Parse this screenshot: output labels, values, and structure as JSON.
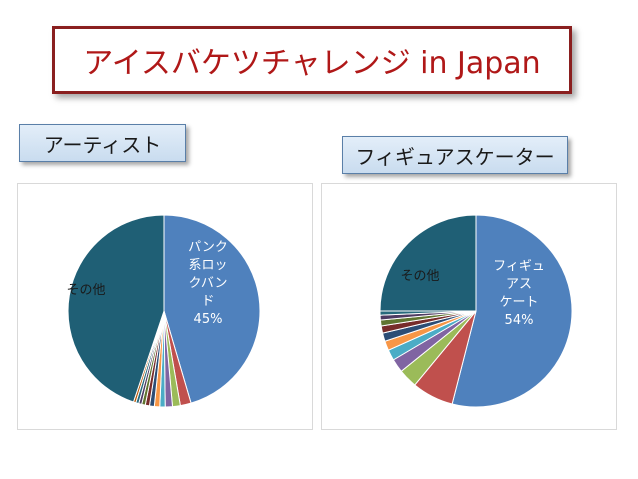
{
  "slide": {
    "title": "アイスバケツチャレンジ in Japan",
    "left_label": "アーティスト",
    "right_label": "フィギュアスケーター"
  },
  "colors": {
    "title_text": "#b01818",
    "title_border": "#8a1f1f"
  },
  "chart_data": [
    {
      "type": "pie",
      "name": "アーティスト",
      "slices": [
        {
          "label": "パンク系ロックバンド",
          "value": 45,
          "color": "#4f81bd",
          "label_lines": [
            "パンク",
            "系ロッ",
            "クバン",
            "ド"
          ],
          "pct_label": "45%"
        },
        {
          "label": "",
          "value": 1.8,
          "color": "#c0504d"
        },
        {
          "label": "",
          "value": 1.3,
          "color": "#9bbb59"
        },
        {
          "label": "",
          "value": 1.2,
          "color": "#8064a2"
        },
        {
          "label": "",
          "value": 0.9,
          "color": "#4bacc6"
        },
        {
          "label": "",
          "value": 0.9,
          "color": "#f79646"
        },
        {
          "label": "",
          "value": 0.8,
          "color": "#2c4d75"
        },
        {
          "label": "",
          "value": 0.7,
          "color": "#772c2a"
        },
        {
          "label": "",
          "value": 0.6,
          "color": "#5f7530"
        },
        {
          "label": "",
          "value": 0.5,
          "color": "#4d3b62"
        },
        {
          "label": "",
          "value": 0.5,
          "color": "#276a7c"
        },
        {
          "label": "",
          "value": 0.4,
          "color": "#b65708"
        },
        {
          "label": "その他",
          "value": 44.4,
          "color": "#1f5f75",
          "label_lines": [
            "その他"
          ]
        }
      ]
    },
    {
      "type": "pie",
      "name": "フィギュアスケーター",
      "slices": [
        {
          "label": "フィギュアスケート",
          "value": 54,
          "color": "#4f81bd",
          "label_lines": [
            "フィギュ",
            "アス",
            "ケート"
          ],
          "pct_label": "54%"
        },
        {
          "label": "",
          "value": 7,
          "color": "#c0504d"
        },
        {
          "label": "",
          "value": 3.2,
          "color": "#9bbb59"
        },
        {
          "label": "",
          "value": 2.3,
          "color": "#8064a2"
        },
        {
          "label": "",
          "value": 1.8,
          "color": "#4bacc6"
        },
        {
          "label": "",
          "value": 1.6,
          "color": "#f79646"
        },
        {
          "label": "",
          "value": 1.4,
          "color": "#2c4d75"
        },
        {
          "label": "",
          "value": 1.2,
          "color": "#772c2a"
        },
        {
          "label": "",
          "value": 1.0,
          "color": "#5f7530"
        },
        {
          "label": "",
          "value": 0.8,
          "color": "#4d3b62"
        },
        {
          "label": "",
          "value": 0.7,
          "color": "#276a7c"
        },
        {
          "label": "その他",
          "value": 25,
          "color": "#1f5f75",
          "label_lines": [
            "その他"
          ]
        }
      ]
    }
  ]
}
